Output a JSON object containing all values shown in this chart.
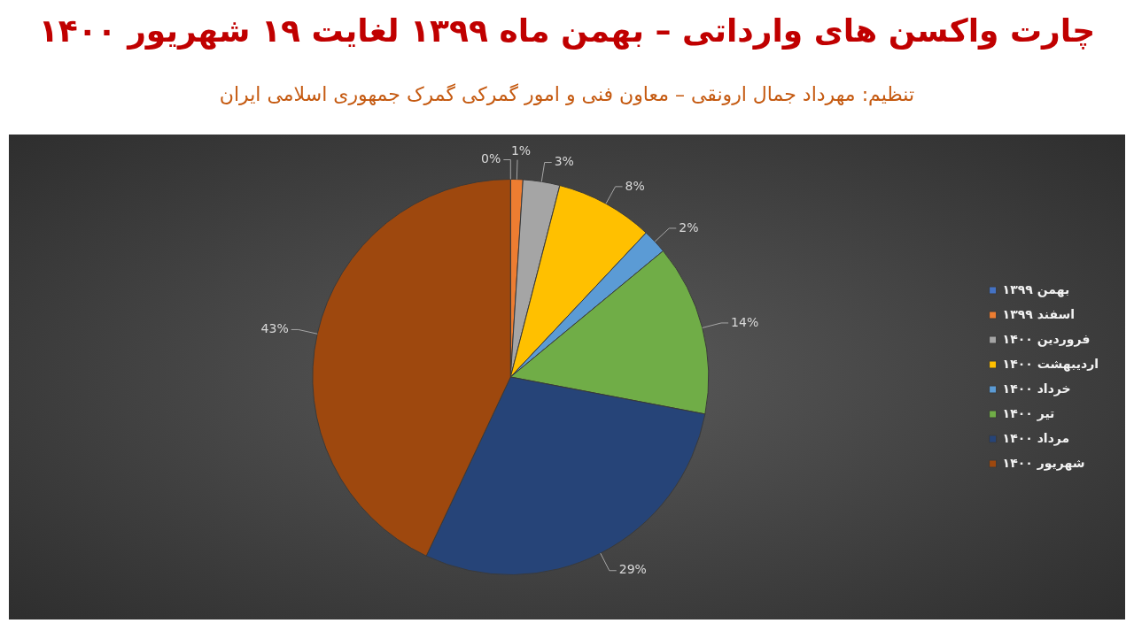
{
  "chart_data": {
    "type": "pie",
    "title": "چارت واکسن های وارداتی – بهمن ماه ۱۳۹۹ لغایت ۱۹ شهریور ۱۴۰۰",
    "subtitle": "تنظیم: مهرداد جمال ارونقی – معاون فنی و امور گمرکی گمرک جمهوری اسلامی ایران",
    "categories": [
      "بهمن ۱۳۹۹",
      "اسفند ۱۳۹۹",
      "فروردین ۱۴۰۰",
      "اردیبهشت ۱۴۰۰",
      "خرداد ۱۴۰۰",
      "تیر ۱۴۰۰",
      "مرداد ۱۴۰۰",
      "شهریور ۱۴۰۰"
    ],
    "values": [
      0,
      1,
      3,
      8,
      2,
      14,
      29,
      43
    ],
    "value_labels": [
      "0%",
      "1%",
      "3%",
      "8%",
      "2%",
      "14%",
      "29%",
      "43%"
    ],
    "colors": [
      "#4472c4",
      "#ed7d31",
      "#a5a5a5",
      "#ffc000",
      "#5b9bd5",
      "#70ad47",
      "#264478",
      "#9e480e"
    ],
    "legend": "right"
  }
}
